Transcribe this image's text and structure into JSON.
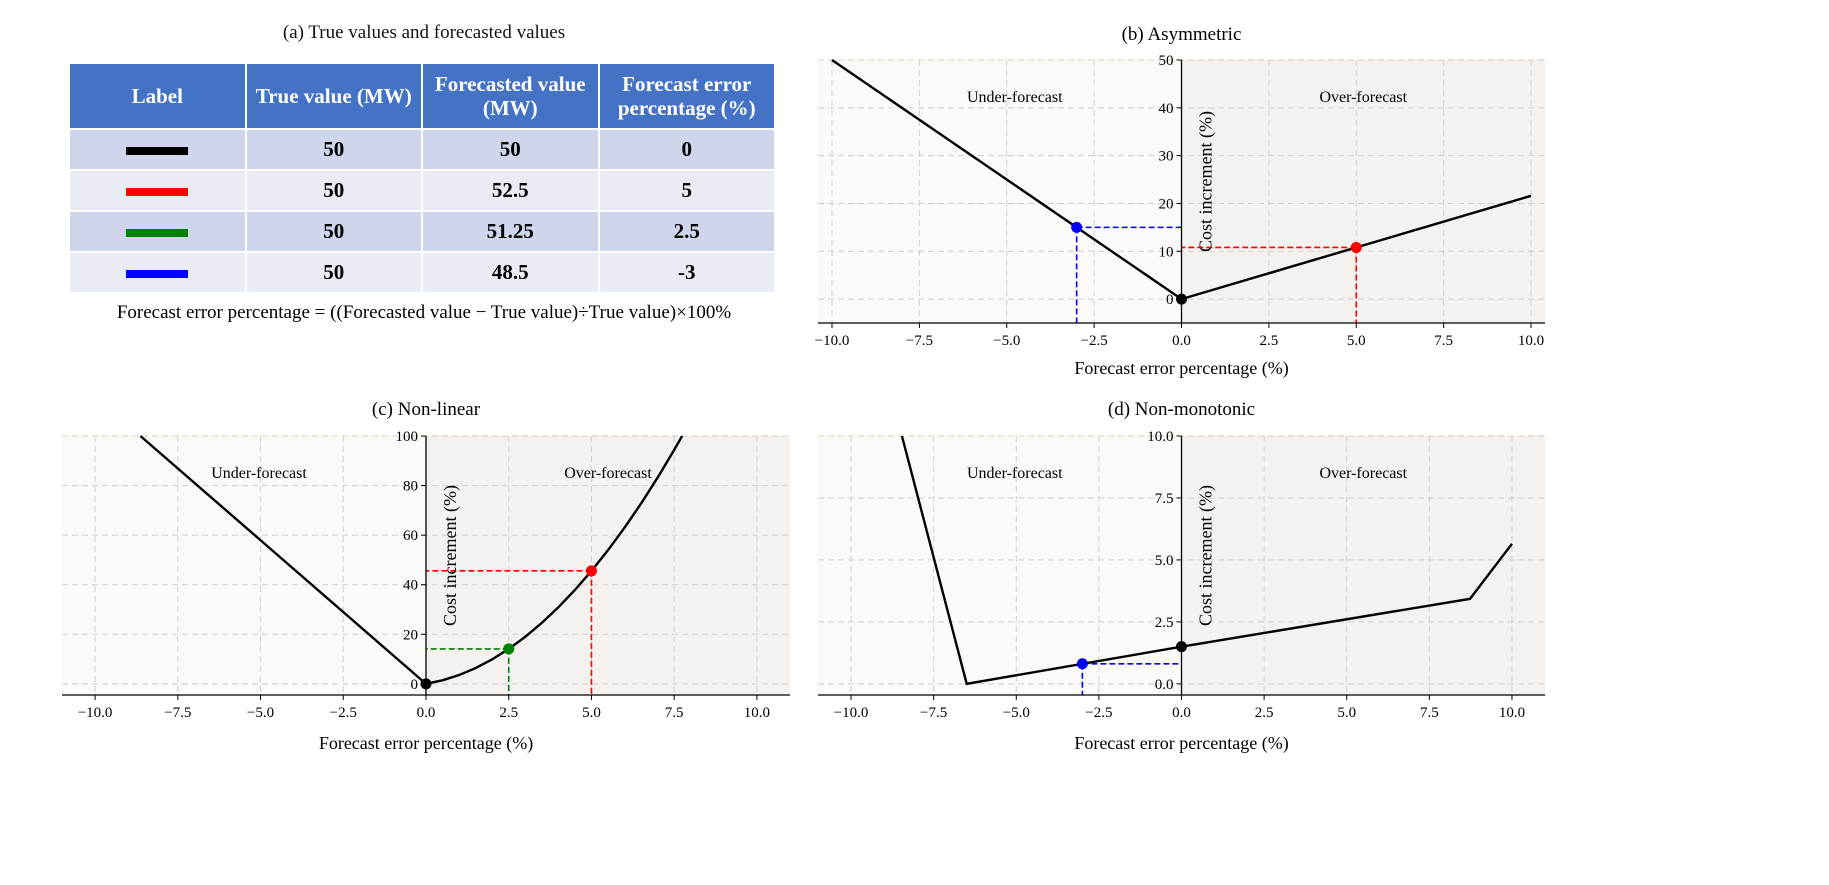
{
  "table_panel": {
    "title": "(a) True values and forecasted values",
    "headers": [
      "Label",
      "True value (MW)",
      "Forecasted value (MW)",
      "Forecast error percentage (%)"
    ],
    "rows": [
      {
        "color": "#000000",
        "true_value": "50",
        "forecasted": "50",
        "error": "0"
      },
      {
        "color": "#ff0000",
        "true_value": "50",
        "forecasted": "52.5",
        "error": "5"
      },
      {
        "color": "#008000",
        "true_value": "50",
        "forecasted": "51.25",
        "error": "2.5"
      },
      {
        "color": "#0000ff",
        "true_value": "50",
        "forecasted": "48.5",
        "error": "-3"
      }
    ],
    "formula": "Forecast error percentage = ((Forecasted value − True value)÷True value)×100%"
  },
  "chart_data": [
    {
      "id": "b",
      "type": "line",
      "title": "(b) Asymmetric",
      "xlabel": "Forecast error percentage (%)",
      "ylabel": "Cost increment (%)",
      "xlim": [
        -10.4,
        10.4
      ],
      "ylim": [
        -5,
        50
      ],
      "xticks": [
        -10,
        -7.5,
        -5,
        -2.5,
        0,
        2.5,
        5,
        7.5,
        10
      ],
      "xticklabels": [
        "−10.0",
        "−7.5",
        "−5.0",
        "−2.5",
        "0.0",
        "2.5",
        "5.0",
        "7.5",
        "10.0"
      ],
      "yticks": [
        0,
        10,
        20,
        30,
        40,
        50
      ],
      "yticklabels": [
        "0",
        "10",
        "20",
        "30",
        "40",
        "50"
      ],
      "regions": {
        "left": "Under-forecast",
        "right": "Over-forecast"
      },
      "grid": true,
      "series": [
        {
          "name": "cost curve",
          "color": "#000000",
          "x": [
            -10,
            0,
            10
          ],
          "y": [
            50,
            0,
            21.6
          ]
        }
      ],
      "markers": [
        {
          "x": 0,
          "y": 0,
          "color": "#000000",
          "guides": false
        },
        {
          "x": -3,
          "y": 15,
          "color": "#0000ff",
          "guides": true
        },
        {
          "x": 5,
          "y": 10.8,
          "color": "#ff0000",
          "guides": true
        }
      ]
    },
    {
      "id": "c",
      "type": "line",
      "title": "(c) Non-linear",
      "xlabel": "Forecast error percentage (%)",
      "ylabel": "Cost increment (%)",
      "xlim": [
        -11,
        11
      ],
      "ylim": [
        -4.5,
        100
      ],
      "xticks": [
        -10,
        -7.5,
        -5,
        -2.5,
        0,
        2.5,
        5,
        7.5,
        10
      ],
      "xticklabels": [
        "−10.0",
        "−7.5",
        "−5.0",
        "−2.5",
        "0.0",
        "2.5",
        "5.0",
        "7.5",
        "10.0"
      ],
      "yticks": [
        0,
        20,
        40,
        60,
        80,
        100
      ],
      "yticklabels": [
        "0",
        "20",
        "40",
        "60",
        "80",
        "100"
      ],
      "regions": {
        "left": "Under-forecast",
        "right": "Over-forecast"
      },
      "grid": true,
      "series": [
        {
          "name": "cost curve",
          "color": "#000000",
          "x": [
            -8.63,
            0,
            0.5,
            1,
            1.5,
            2,
            2.5,
            3,
            3.5,
            4,
            4.5,
            5,
            5.5,
            6,
            6.5,
            7,
            7.5,
            7.74
          ],
          "y": [
            100,
            0,
            1.43,
            3.55,
            6.37,
            9.88,
            14.09,
            18.99,
            24.59,
            30.88,
            37.87,
            45.55,
            53.93,
            63.0,
            72.77,
            83.23,
            94.39,
            100
          ]
        }
      ],
      "markers": [
        {
          "x": 0,
          "y": 0,
          "color": "#000000",
          "guides": false
        },
        {
          "x": 2.5,
          "y": 14.1,
          "color": "#008000",
          "guides": true
        },
        {
          "x": 5,
          "y": 45.6,
          "color": "#ff0000",
          "guides": true
        }
      ]
    },
    {
      "id": "d",
      "type": "line",
      "title": "(d) Non-monotonic",
      "xlabel": "Forecast error percentage (%)",
      "ylabel": "Cost increment (%)",
      "xlim": [
        -11,
        11
      ],
      "ylim": [
        -0.45,
        10
      ],
      "xticks": [
        -10,
        -7.5,
        -5,
        -2.5,
        0,
        2.5,
        5,
        7.5,
        10
      ],
      "xticklabels": [
        "−10.0",
        "−7.5",
        "−5.0",
        "−2.5",
        "0.0",
        "2.5",
        "5.0",
        "7.5",
        "10.0"
      ],
      "yticks": [
        0,
        2.5,
        5,
        7.5,
        10
      ],
      "yticklabels": [
        "0.0",
        "2.5",
        "5.0",
        "7.5",
        "10.0"
      ],
      "regions": {
        "left": "Under-forecast",
        "right": "Over-forecast"
      },
      "grid": true,
      "series": [
        {
          "name": "cost curve",
          "color": "#000000",
          "x": [
            -8.46,
            -6.5,
            0,
            8.73,
            10
          ],
          "y": [
            10,
            0,
            1.5,
            3.43,
            5.65
          ]
        }
      ],
      "markers": [
        {
          "x": 0,
          "y": 1.5,
          "color": "#000000",
          "guides": false
        },
        {
          "x": -3,
          "y": 0.81,
          "color": "#0000ff",
          "guides": true
        }
      ]
    }
  ]
}
